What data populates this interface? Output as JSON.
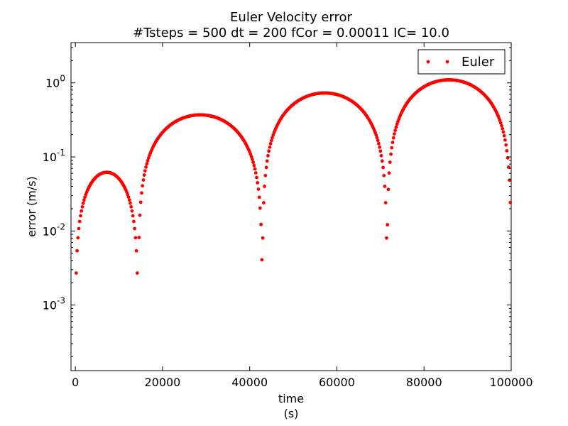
{
  "chart_data": {
    "type": "scatter",
    "title": "Euler Velocity error",
    "subtitle": "#Tsteps = 500 dt = 200 fCor = 0.00011 IC= 10.0",
    "xlabel": "time",
    "xlabel_unit": "(s)",
    "ylabel": "error (m/s)",
    "yscale": "log",
    "xlim": [
      -1000,
      100000
    ],
    "ylim": [
      0.00013,
      3.5
    ],
    "x_ticks": [
      0,
      20000,
      40000,
      60000,
      80000,
      100000
    ],
    "x_tick_labels": [
      "0",
      "20000",
      "40000",
      "60000",
      "80000",
      "100000"
    ],
    "y_ticks": [
      0.001,
      0.01,
      0.1,
      1
    ],
    "y_tick_labels": [
      {
        "base": "10",
        "exp": "-3"
      },
      {
        "base": "10",
        "exp": "-2"
      },
      {
        "base": "10",
        "exp": "-1"
      },
      {
        "base": "10",
        "exp": "0"
      }
    ],
    "grid": false,
    "legend_position": "top-right",
    "series": [
      {
        "name": "Euler",
        "color": "#ff0000",
        "marker": "dot",
        "sampling": {
          "dt": 200,
          "steps": 500,
          "period_s": 28560
        },
        "arches": [
          {
            "start": 0,
            "end": 14400,
            "peak": 0.062
          },
          {
            "start": 14400,
            "end": 42900,
            "peak": 0.37
          },
          {
            "start": 42900,
            "end": 71500,
            "peak": 0.73
          },
          {
            "start": 71500,
            "end": 100000,
            "peak": 1.1
          }
        ]
      }
    ]
  }
}
